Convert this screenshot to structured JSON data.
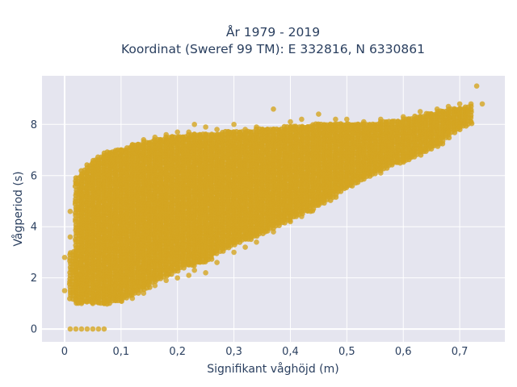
{
  "chart_data": {
    "type": "scatter",
    "title": "År 1979 - 2019",
    "subtitle": "Koordinat (Sweref 99 TM): E 332816, N 6330861",
    "xlabel": "Signifikant våghöjd (m)",
    "ylabel": "Vågperiod (s)",
    "xlim": [
      -0.04,
      0.78
    ],
    "ylim": [
      -0.5,
      9.9
    ],
    "xticks": [
      0,
      0.1,
      0.2,
      0.3,
      0.4,
      0.5,
      0.6,
      0.7
    ],
    "xtick_labels": [
      "0",
      "0,1",
      "0,2",
      "0,3",
      "0,4",
      "0,5",
      "0,6",
      "0,7"
    ],
    "yticks": [
      0,
      2,
      4,
      6,
      8
    ],
    "ytick_labels": [
      "0",
      "2",
      "4",
      "6",
      "8"
    ],
    "grid": true,
    "legend": "none",
    "marker_color": "#d4a521",
    "background_color": "#e5e5ef",
    "series": [
      {
        "points": [
          [
            0.0,
            2.8
          ],
          [
            0.0,
            1.5
          ],
          [
            0.01,
            0
          ],
          [
            0.02,
            0
          ],
          [
            0.03,
            0
          ],
          [
            0.04,
            0
          ],
          [
            0.05,
            0
          ],
          [
            0.06,
            0
          ],
          [
            0.07,
            0
          ],
          [
            0.01,
            4.6
          ],
          [
            0.01,
            3.6
          ],
          [
            0.02,
            5.7
          ],
          [
            0.02,
            1.1
          ],
          [
            0.03,
            6.0
          ],
          [
            0.03,
            1.0
          ],
          [
            0.05,
            6.5
          ],
          [
            0.05,
            1.0
          ],
          [
            0.07,
            6.7
          ],
          [
            0.07,
            1.0
          ],
          [
            0.1,
            7.0
          ],
          [
            0.1,
            1.1
          ],
          [
            0.12,
            7.2
          ],
          [
            0.12,
            1.2
          ],
          [
            0.14,
            7.4
          ],
          [
            0.14,
            1.4
          ],
          [
            0.16,
            7.5
          ],
          [
            0.16,
            1.7
          ],
          [
            0.18,
            7.6
          ],
          [
            0.18,
            1.9
          ],
          [
            0.2,
            7.7
          ],
          [
            0.2,
            2.0
          ],
          [
            0.22,
            7.7
          ],
          [
            0.22,
            2.1
          ],
          [
            0.23,
            8.0
          ],
          [
            0.23,
            2.3
          ],
          [
            0.25,
            7.9
          ],
          [
            0.25,
            2.2
          ],
          [
            0.27,
            7.8
          ],
          [
            0.27,
            2.6
          ],
          [
            0.3,
            8.0
          ],
          [
            0.3,
            3.0
          ],
          [
            0.32,
            7.8
          ],
          [
            0.32,
            3.2
          ],
          [
            0.34,
            7.9
          ],
          [
            0.34,
            3.4
          ],
          [
            0.37,
            8.6
          ],
          [
            0.37,
            3.8
          ],
          [
            0.4,
            8.1
          ],
          [
            0.4,
            4.2
          ],
          [
            0.42,
            8.2
          ],
          [
            0.42,
            4.4
          ],
          [
            0.45,
            8.4
          ],
          [
            0.45,
            4.9
          ],
          [
            0.48,
            8.2
          ],
          [
            0.48,
            5.5
          ],
          [
            0.5,
            8.2
          ],
          [
            0.5,
            5.7
          ],
          [
            0.53,
            8.1
          ],
          [
            0.53,
            6.0
          ],
          [
            0.56,
            8.2
          ],
          [
            0.56,
            6.1
          ],
          [
            0.6,
            8.3
          ],
          [
            0.6,
            6.6
          ],
          [
            0.63,
            8.5
          ],
          [
            0.63,
            7.0
          ],
          [
            0.66,
            8.6
          ],
          [
            0.66,
            7.3
          ],
          [
            0.68,
            8.7
          ],
          [
            0.68,
            7.7
          ],
          [
            0.7,
            8.8
          ],
          [
            0.7,
            7.9
          ],
          [
            0.72,
            8.8
          ],
          [
            0.72,
            8.1
          ],
          [
            0.73,
            9.5
          ],
          [
            0.74,
            8.8
          ]
        ],
        "bands": [
          [
            0.01,
            1.1,
            3.0
          ],
          [
            0.02,
            1.0,
            5.9
          ],
          [
            0.03,
            1.0,
            6.2
          ],
          [
            0.04,
            1.0,
            6.4
          ],
          [
            0.05,
            1.0,
            6.6
          ],
          [
            0.06,
            1.0,
            6.7
          ],
          [
            0.07,
            1.0,
            6.9
          ],
          [
            0.08,
            1.1,
            6.9
          ],
          [
            0.09,
            1.1,
            7.0
          ],
          [
            0.1,
            1.2,
            7.0
          ],
          [
            0.11,
            1.3,
            7.1
          ],
          [
            0.12,
            1.4,
            7.2
          ],
          [
            0.13,
            1.5,
            7.2
          ],
          [
            0.14,
            1.6,
            7.3
          ],
          [
            0.15,
            1.8,
            7.3
          ],
          [
            0.16,
            1.9,
            7.4
          ],
          [
            0.17,
            2.0,
            7.4
          ],
          [
            0.18,
            2.1,
            7.5
          ],
          [
            0.19,
            2.2,
            7.5
          ],
          [
            0.2,
            2.3,
            7.5
          ],
          [
            0.21,
            2.4,
            7.5
          ],
          [
            0.22,
            2.4,
            7.6
          ],
          [
            0.23,
            2.5,
            7.6
          ],
          [
            0.24,
            2.6,
            7.6
          ],
          [
            0.25,
            2.7,
            7.6
          ],
          [
            0.26,
            2.9,
            7.6
          ],
          [
            0.27,
            3.0,
            7.6
          ],
          [
            0.28,
            3.1,
            7.7
          ],
          [
            0.29,
            3.2,
            7.7
          ],
          [
            0.3,
            3.3,
            7.7
          ],
          [
            0.31,
            3.4,
            7.7
          ],
          [
            0.32,
            3.5,
            7.7
          ],
          [
            0.33,
            3.6,
            7.7
          ],
          [
            0.34,
            3.7,
            7.8
          ],
          [
            0.35,
            3.8,
            7.8
          ],
          [
            0.36,
            3.9,
            7.8
          ],
          [
            0.37,
            4.0,
            7.8
          ],
          [
            0.38,
            4.1,
            7.8
          ],
          [
            0.39,
            4.2,
            7.9
          ],
          [
            0.4,
            4.3,
            7.9
          ],
          [
            0.41,
            4.4,
            7.9
          ],
          [
            0.42,
            4.5,
            7.9
          ],
          [
            0.43,
            4.6,
            7.9
          ],
          [
            0.44,
            4.8,
            8.0
          ],
          [
            0.45,
            4.9,
            8.0
          ],
          [
            0.46,
            5.0,
            8.0
          ],
          [
            0.47,
            5.1,
            8.0
          ],
          [
            0.48,
            5.3,
            8.0
          ],
          [
            0.49,
            5.4,
            8.0
          ],
          [
            0.5,
            5.6,
            8.0
          ],
          [
            0.51,
            5.7,
            8.0
          ],
          [
            0.52,
            5.8,
            8.0
          ],
          [
            0.53,
            5.9,
            8.0
          ],
          [
            0.54,
            6.0,
            8.0
          ],
          [
            0.55,
            6.1,
            8.0
          ],
          [
            0.56,
            6.2,
            8.1
          ],
          [
            0.57,
            6.3,
            8.1
          ],
          [
            0.58,
            6.4,
            8.1
          ],
          [
            0.59,
            6.5,
            8.1
          ],
          [
            0.6,
            6.6,
            8.2
          ],
          [
            0.61,
            6.7,
            8.2
          ],
          [
            0.62,
            6.8,
            8.3
          ],
          [
            0.63,
            6.9,
            8.3
          ],
          [
            0.64,
            7.0,
            8.4
          ],
          [
            0.65,
            7.1,
            8.4
          ],
          [
            0.66,
            7.2,
            8.5
          ],
          [
            0.67,
            7.4,
            8.5
          ],
          [
            0.68,
            7.6,
            8.6
          ],
          [
            0.69,
            7.8,
            8.6
          ],
          [
            0.7,
            7.9,
            8.6
          ],
          [
            0.71,
            8.0,
            8.7
          ]
        ]
      }
    ]
  }
}
